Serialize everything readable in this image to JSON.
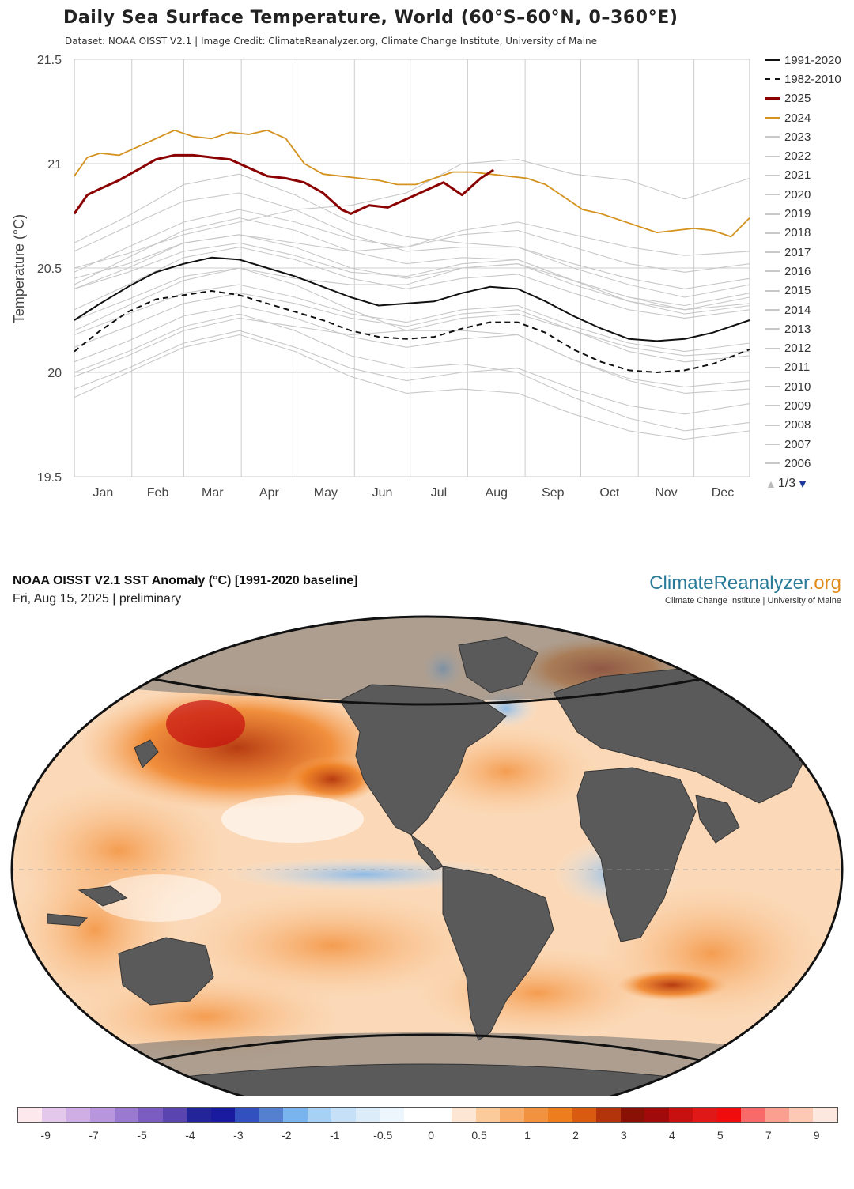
{
  "chart": {
    "title": "Daily Sea Surface Temperature, World (60°S–60°N, 0–360°E)",
    "subtitle": "Dataset: NOAA OISST V2.1 | Image Credit: ClimateReanalyzer.org, Climate Change Institute, University of Maine",
    "ylabel": "Temperature (°C)",
    "pager": "1/3"
  },
  "legend": [
    {
      "label": "1991-2020",
      "color": "#111111",
      "style": "solid"
    },
    {
      "label": "1982-2010",
      "color": "#111111",
      "style": "dashed"
    },
    {
      "label": "2025",
      "color": "#8b0000",
      "style": "solid"
    },
    {
      "label": "2024",
      "color": "#d4921e",
      "style": "solid"
    },
    {
      "label": "2023",
      "color": "#c8c8c8",
      "style": "solid"
    },
    {
      "label": "2022",
      "color": "#c8c8c8",
      "style": "solid"
    },
    {
      "label": "2021",
      "color": "#c8c8c8",
      "style": "solid"
    },
    {
      "label": "2020",
      "color": "#c8c8c8",
      "style": "solid"
    },
    {
      "label": "2019",
      "color": "#c8c8c8",
      "style": "solid"
    },
    {
      "label": "2018",
      "color": "#c8c8c8",
      "style": "solid"
    },
    {
      "label": "2017",
      "color": "#c8c8c8",
      "style": "solid"
    },
    {
      "label": "2016",
      "color": "#c8c8c8",
      "style": "solid"
    },
    {
      "label": "2015",
      "color": "#c8c8c8",
      "style": "solid"
    },
    {
      "label": "2014",
      "color": "#c8c8c8",
      "style": "solid"
    },
    {
      "label": "2013",
      "color": "#c8c8c8",
      "style": "solid"
    },
    {
      "label": "2012",
      "color": "#c8c8c8",
      "style": "solid"
    },
    {
      "label": "2011",
      "color": "#c8c8c8",
      "style": "solid"
    },
    {
      "label": "2010",
      "color": "#c8c8c8",
      "style": "solid"
    },
    {
      "label": "2009",
      "color": "#c8c8c8",
      "style": "solid"
    },
    {
      "label": "2008",
      "color": "#c8c8c8",
      "style": "solid"
    },
    {
      "label": "2007",
      "color": "#c8c8c8",
      "style": "solid"
    },
    {
      "label": "2006",
      "color": "#c8c8c8",
      "style": "solid"
    }
  ],
  "chart_data": {
    "type": "line",
    "ylim": [
      19.5,
      21.5
    ],
    "yticks": [
      "19.5",
      "20",
      "20.5",
      "21",
      "21.5"
    ],
    "xlim": [
      1,
      365
    ],
    "months": [
      "Jan",
      "Feb",
      "Mar",
      "Apr",
      "May",
      "Jun",
      "Jul",
      "Aug",
      "Sep",
      "Oct",
      "Nov",
      "Dec"
    ],
    "grid": true,
    "legend_position": "right",
    "series": [
      {
        "name": "1991-2020",
        "style": "solid",
        "color": "#111111",
        "x": [
          1,
          15,
          30,
          45,
          60,
          75,
          90,
          105,
          120,
          135,
          150,
          165,
          180,
          195,
          210,
          225,
          240,
          255,
          270,
          285,
          300,
          315,
          330,
          345,
          365
        ],
        "y": [
          20.25,
          20.33,
          20.41,
          20.48,
          20.52,
          20.55,
          20.54,
          20.5,
          20.46,
          20.41,
          20.36,
          20.32,
          20.33,
          20.34,
          20.38,
          20.41,
          20.4,
          20.34,
          20.27,
          20.21,
          20.16,
          20.15,
          20.16,
          20.19,
          20.25
        ]
      },
      {
        "name": "1982-2010",
        "style": "dashed",
        "color": "#111111",
        "x": [
          1,
          15,
          30,
          45,
          60,
          75,
          90,
          105,
          120,
          135,
          150,
          165,
          180,
          195,
          210,
          225,
          240,
          255,
          270,
          285,
          300,
          315,
          330,
          345,
          365
        ],
        "y": [
          20.1,
          20.2,
          20.29,
          20.35,
          20.37,
          20.39,
          20.37,
          20.33,
          20.29,
          20.25,
          20.2,
          20.17,
          20.16,
          20.17,
          20.21,
          20.24,
          20.24,
          20.19,
          20.11,
          20.05,
          20.01,
          20.0,
          20.01,
          20.04,
          20.11
        ]
      },
      {
        "name": "2025",
        "style": "solid",
        "color": "#8b0000",
        "x": [
          1,
          8,
          15,
          25,
          35,
          45,
          55,
          65,
          75,
          85,
          95,
          105,
          115,
          125,
          135,
          145,
          150,
          160,
          170,
          180,
          190,
          200,
          205,
          210,
          215,
          220,
          227
        ],
        "y": [
          20.76,
          20.85,
          20.88,
          20.92,
          20.97,
          21.02,
          21.04,
          21.04,
          21.03,
          21.02,
          20.98,
          20.94,
          20.93,
          20.91,
          20.86,
          20.78,
          20.76,
          20.8,
          20.79,
          20.83,
          20.87,
          20.91,
          20.88,
          20.85,
          20.89,
          20.93,
          20.97
        ]
      },
      {
        "name": "2024",
        "style": "solid",
        "color": "#d4921e",
        "x": [
          1,
          8,
          15,
          25,
          35,
          45,
          55,
          65,
          75,
          85,
          95,
          105,
          115,
          125,
          135,
          145,
          155,
          165,
          175,
          185,
          195,
          205,
          215,
          225,
          235,
          245,
          255,
          265,
          275,
          285,
          295,
          305,
          315,
          325,
          335,
          345,
          355,
          365
        ],
        "y": [
          20.94,
          21.03,
          21.05,
          21.04,
          21.08,
          21.12,
          21.16,
          21.13,
          21.12,
          21.15,
          21.14,
          21.16,
          21.12,
          21.0,
          20.95,
          20.94,
          20.93,
          20.92,
          20.9,
          20.9,
          20.93,
          20.96,
          20.96,
          20.95,
          20.94,
          20.93,
          20.9,
          20.84,
          20.78,
          20.76,
          20.73,
          20.7,
          20.67,
          20.68,
          20.69,
          20.68,
          20.65,
          20.74
        ]
      },
      {
        "name": "2023",
        "style": "solid",
        "color": "#c8c8c8",
        "x": [
          1,
          30,
          60,
          90,
          120,
          150,
          180,
          210,
          240,
          270,
          300,
          330,
          365
        ],
        "y": [
          20.5,
          20.57,
          20.66,
          20.72,
          20.78,
          20.8,
          20.86,
          21.0,
          21.02,
          20.95,
          20.92,
          20.83,
          20.93
        ]
      },
      {
        "name": "2016",
        "style": "solid",
        "color": "#c8c8c8",
        "x": [
          1,
          30,
          60,
          90,
          120,
          150,
          180,
          210,
          240,
          270,
          300,
          330,
          365
        ],
        "y": [
          20.62,
          20.75,
          20.9,
          20.95,
          20.85,
          20.72,
          20.65,
          20.62,
          20.6,
          20.52,
          20.45,
          20.4,
          20.45
        ]
      },
      {
        "name": "2020",
        "style": "solid",
        "color": "#c8c8c8",
        "x": [
          1,
          30,
          60,
          90,
          120,
          150,
          180,
          210,
          240,
          270,
          300,
          330,
          365
        ],
        "y": [
          20.58,
          20.7,
          20.82,
          20.86,
          20.78,
          20.66,
          20.58,
          20.6,
          20.6,
          20.5,
          20.42,
          20.36,
          20.42
        ]
      },
      {
        "name": "2019",
        "style": "solid",
        "color": "#c8c8c8",
        "x": [
          1,
          30,
          60,
          90,
          120,
          150,
          180,
          210,
          240,
          270,
          300,
          330,
          365
        ],
        "y": [
          20.48,
          20.6,
          20.72,
          20.78,
          20.72,
          20.64,
          20.6,
          20.66,
          20.68,
          20.6,
          20.52,
          20.48,
          20.52
        ]
      },
      {
        "name": "2015",
        "style": "solid",
        "color": "#c8c8c8",
        "x": [
          1,
          30,
          60,
          90,
          120,
          150,
          180,
          210,
          240,
          270,
          300,
          330,
          365
        ],
        "y": [
          20.4,
          20.5,
          20.62,
          20.66,
          20.62,
          20.58,
          20.6,
          20.68,
          20.72,
          20.66,
          20.6,
          20.56,
          20.58
        ]
      },
      {
        "name": "2021",
        "style": "solid",
        "color": "#c8c8c8",
        "x": [
          1,
          30,
          60,
          90,
          120,
          150,
          180,
          210,
          240,
          270,
          300,
          330,
          365
        ],
        "y": [
          20.45,
          20.52,
          20.62,
          20.66,
          20.6,
          20.5,
          20.45,
          20.5,
          20.52,
          20.42,
          20.34,
          20.3,
          20.36
        ]
      },
      {
        "name": "2022",
        "style": "solid",
        "color": "#c8c8c8",
        "x": [
          1,
          30,
          60,
          90,
          120,
          150,
          180,
          210,
          240,
          270,
          300,
          330,
          365
        ],
        "y": [
          20.4,
          20.48,
          20.58,
          20.62,
          20.56,
          20.48,
          20.46,
          20.52,
          20.54,
          20.44,
          20.36,
          20.32,
          20.38
        ]
      },
      {
        "name": "2017",
        "style": "solid",
        "color": "#c8c8c8",
        "x": [
          1,
          30,
          60,
          90,
          120,
          150,
          180,
          210,
          240,
          270,
          300,
          330,
          365
        ],
        "y": [
          20.42,
          20.55,
          20.68,
          20.74,
          20.68,
          20.58,
          20.52,
          20.55,
          20.54,
          20.44,
          20.34,
          20.28,
          20.32
        ]
      },
      {
        "name": "2018",
        "style": "solid",
        "color": "#c8c8c8",
        "x": [
          1,
          30,
          60,
          90,
          120,
          150,
          180,
          210,
          240,
          270,
          300,
          330,
          365
        ],
        "y": [
          20.3,
          20.42,
          20.55,
          20.6,
          20.54,
          20.45,
          20.4,
          20.45,
          20.47,
          20.38,
          20.3,
          20.26,
          20.3
        ]
      },
      {
        "name": "2014",
        "style": "solid",
        "color": "#c8c8c8",
        "x": [
          1,
          30,
          60,
          90,
          120,
          150,
          180,
          210,
          240,
          270,
          300,
          330,
          365
        ],
        "y": [
          20.25,
          20.35,
          20.46,
          20.5,
          20.45,
          20.42,
          20.42,
          20.5,
          20.52,
          20.44,
          20.36,
          20.3,
          20.33
        ]
      },
      {
        "name": "2013",
        "style": "solid",
        "color": "#c8c8c8",
        "x": [
          1,
          30,
          60,
          90,
          120,
          150,
          180,
          210,
          240,
          270,
          300,
          330,
          365
        ],
        "y": [
          20.18,
          20.28,
          20.38,
          20.42,
          20.36,
          20.28,
          20.24,
          20.3,
          20.32,
          20.22,
          20.14,
          20.1,
          20.14
        ]
      },
      {
        "name": "2012",
        "style": "solid",
        "color": "#c8c8c8",
        "x": [
          1,
          30,
          60,
          90,
          120,
          150,
          180,
          210,
          240,
          270,
          300,
          330,
          365
        ],
        "y": [
          20.12,
          20.22,
          20.33,
          20.38,
          20.33,
          20.26,
          20.22,
          20.28,
          20.3,
          20.2,
          20.1,
          20.05,
          20.08
        ]
      },
      {
        "name": "2011",
        "style": "solid",
        "color": "#c8c8c8",
        "x": [
          1,
          30,
          60,
          90,
          120,
          150,
          180,
          210,
          240,
          270,
          300,
          330,
          365
        ],
        "y": [
          20.05,
          20.15,
          20.27,
          20.32,
          20.26,
          20.17,
          20.12,
          20.16,
          20.18,
          20.06,
          19.97,
          19.93,
          19.96
        ]
      },
      {
        "name": "2010",
        "style": "solid",
        "color": "#c8c8c8",
        "x": [
          1,
          30,
          60,
          90,
          120,
          150,
          180,
          210,
          240,
          270,
          300,
          330,
          365
        ],
        "y": [
          20.2,
          20.32,
          20.44,
          20.5,
          20.42,
          20.3,
          20.2,
          20.2,
          20.18,
          20.06,
          19.96,
          19.9,
          19.92
        ]
      },
      {
        "name": "2009",
        "style": "solid",
        "color": "#c8c8c8",
        "x": [
          1,
          30,
          60,
          90,
          120,
          150,
          180,
          210,
          240,
          270,
          300,
          330,
          365
        ],
        "y": [
          19.98,
          20.08,
          20.2,
          20.26,
          20.22,
          20.18,
          20.2,
          20.26,
          20.28,
          20.2,
          20.12,
          20.08,
          20.1
        ]
      },
      {
        "name": "2008",
        "style": "solid",
        "color": "#c8c8c8",
        "x": [
          1,
          30,
          60,
          90,
          120,
          150,
          180,
          210,
          240,
          270,
          300,
          330,
          365
        ],
        "y": [
          19.92,
          20.02,
          20.14,
          20.2,
          20.12,
          20.02,
          19.96,
          20.0,
          20.02,
          19.92,
          19.84,
          19.8,
          19.85
        ]
      },
      {
        "name": "2007",
        "style": "solid",
        "color": "#c8c8c8",
        "x": [
          1,
          30,
          60,
          90,
          120,
          150,
          180,
          210,
          240,
          270,
          300,
          330,
          365
        ],
        "y": [
          20.0,
          20.1,
          20.22,
          20.28,
          20.2,
          20.08,
          20.02,
          20.04,
          20.0,
          19.88,
          19.78,
          19.72,
          19.76
        ]
      },
      {
        "name": "2006",
        "style": "solid",
        "color": "#c8c8c8",
        "x": [
          1,
          30,
          60,
          90,
          120,
          150,
          180,
          210,
          240,
          270,
          300,
          330,
          365
        ],
        "y": [
          19.88,
          20.0,
          20.12,
          20.18,
          20.1,
          19.98,
          19.9,
          19.92,
          19.9,
          19.8,
          19.72,
          19.68,
          19.72
        ]
      }
    ]
  },
  "map": {
    "title": "NOAA OISST V2.1 SST Anomaly (°C) [1991-2020 baseline]",
    "date": "Fri, Aug 15, 2025 | preliminary",
    "brand_main_a": "ClimateReanalyzer",
    "brand_main_b": ".org",
    "brand_sub": "Climate Change Institute | University of Maine"
  },
  "colorbar": {
    "labels": [
      "-9",
      "-7",
      "-5",
      "-4",
      "-3",
      "-2",
      "-1",
      "-0.5",
      "0",
      "0.5",
      "1",
      "2",
      "3",
      "4",
      "5",
      "7",
      "9"
    ],
    "colors": [
      "#fde8ee",
      "#e3c8ec",
      "#cfaee6",
      "#b896de",
      "#9a7ad0",
      "#7b5cc0",
      "#5a44b0",
      "#24249a",
      "#1a1aa0",
      "#3350c0",
      "#5580d0",
      "#7ab4ee",
      "#a6d0f4",
      "#c6e0f7",
      "#dcecf9",
      "#eef6fd",
      "#ffffff",
      "#ffffff",
      "#fde7d4",
      "#fbcb9c",
      "#f8ad6a",
      "#f3923e",
      "#ee7d1e",
      "#d95b10",
      "#b3340a",
      "#8a1005",
      "#a00a0a",
      "#c81010",
      "#e01818",
      "#f00c0c",
      "#f86a6a",
      "#fba090",
      "#fdc8b4",
      "#fde8e0"
    ]
  }
}
